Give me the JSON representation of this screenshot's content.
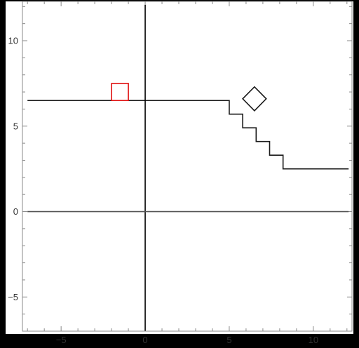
{
  "chart_data": {
    "type": "line",
    "title": "",
    "xlabel": "",
    "ylabel": "",
    "xlim": [
      -7.3,
      12.3
    ],
    "ylim": [
      -7.0,
      12.3
    ],
    "grid": false,
    "frame": true,
    "xticks": [
      {
        "value": -5,
        "label": "−5"
      },
      {
        "value": 0,
        "label": "0"
      },
      {
        "value": 5,
        "label": "5"
      },
      {
        "value": 10,
        "label": "10"
      }
    ],
    "yticks": [
      {
        "value": -5,
        "label": "−5"
      },
      {
        "value": 0,
        "label": "0"
      },
      {
        "value": 5,
        "label": "5"
      },
      {
        "value": 10,
        "label": "10"
      }
    ],
    "x_minor_step": 1,
    "y_minor_step": 1,
    "series": [
      {
        "kind": "line",
        "color": "#1a1a1a",
        "points": [
          [
            -7.0,
            6.5
          ],
          [
            5.0,
            6.5
          ],
          [
            5.0,
            5.7
          ],
          [
            5.8,
            5.7
          ],
          [
            5.8,
            4.9
          ],
          [
            6.6,
            4.9
          ],
          [
            6.6,
            4.1
          ],
          [
            7.4,
            4.1
          ],
          [
            7.4,
            3.3
          ],
          [
            8.2,
            3.3
          ],
          [
            8.2,
            2.5
          ],
          [
            12.1,
            2.5
          ]
        ]
      },
      {
        "kind": "line",
        "color": "#000000",
        "points": [
          [
            0,
            12.1
          ],
          [
            0,
            -7.0
          ]
        ]
      },
      {
        "kind": "line",
        "color": "#555555",
        "points": [
          [
            -7.0,
            0
          ],
          [
            12.1,
            0
          ]
        ]
      },
      {
        "kind": "square",
        "color": "#e01010",
        "center": [
          -1.5,
          7.0
        ],
        "half_size": 0.5
      },
      {
        "kind": "diamond",
        "color": "#1a1a1a",
        "center": [
          6.5,
          6.6
        ],
        "half_diagonal": 0.7
      }
    ],
    "colors": {
      "background": "#ffffff",
      "outer": "#000000",
      "frame": "#8a8a8a",
      "tick": "#8a8a8a"
    }
  }
}
